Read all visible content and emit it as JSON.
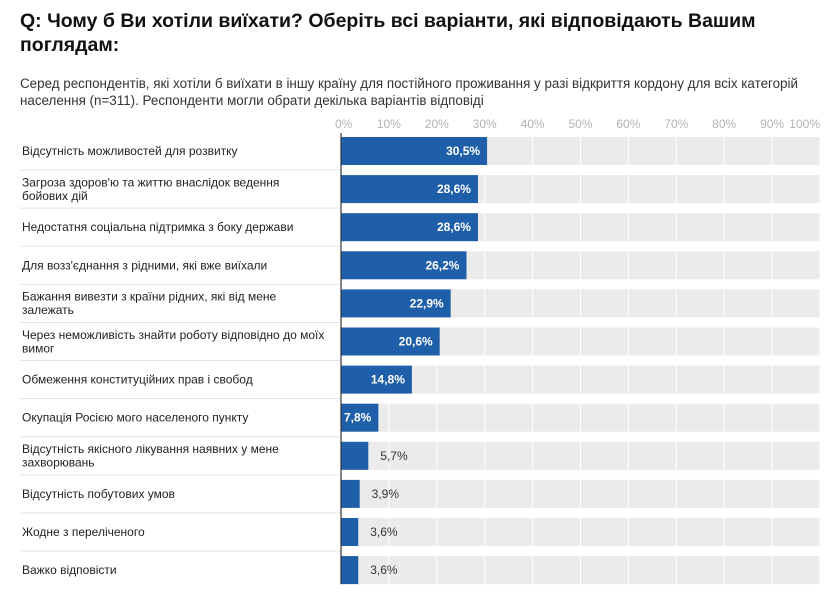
{
  "header": {
    "title": "Q: Чому б Ви хотіли виїхати? Оберіть всі варіанти, які відповідають Вашим поглядам:",
    "subtitle": "Серед респондентів, які хотіли б виїхати в іншу країну для постійного проживання у разі відкриття кордону для всіх категорій населення (n=311). Респонденти могли обрати декілька варіантів відповіді"
  },
  "chart_data": {
    "type": "bar",
    "orientation": "horizontal",
    "title": "Q: Чому б Ви хотіли виїхати? Оберіть всі варіанти, які відповідають Вашим поглядам:",
    "subtitle": "Серед респондентів, які хотіли б виїхати в іншу країну для постійного проживання у разі відкриття кордону для всіх категорій населення (n=311). Респонденти могли обрати декілька варіантів відповіді",
    "categories": [
      [
        "Відсутність можливостей для розвитку"
      ],
      [
        "Загроза здоров'ю та життю внаслідок ведення",
        "бойових дій"
      ],
      [
        "Недостатня соціальна підтримка з боку держави"
      ],
      [
        "Для возз'єднання з рідними, які вже виїхали"
      ],
      [
        "Бажання вивезти з країни рідних, які від мене",
        "залежать"
      ],
      [
        "Через неможливість знайти роботу відповідно до моїх",
        "вимог"
      ],
      [
        "Обмеження конституційних прав і свобод"
      ],
      [
        "Окупація Росією мого населеного пункту"
      ],
      [
        "Відсутність якісного лікування наявних у мене",
        "захворювань"
      ],
      [
        "Відсутність побутових умов"
      ],
      [
        "Жодне з переліченого"
      ],
      [
        "Важко відповісти"
      ]
    ],
    "values": [
      30.5,
      28.6,
      28.6,
      26.2,
      22.9,
      20.6,
      14.8,
      7.8,
      5.7,
      3.9,
      3.6,
      3.6
    ],
    "value_labels": [
      "30,5%",
      "28,6%",
      "28,6%",
      "26,2%",
      "22,9%",
      "20,6%",
      "14,8%",
      "7,8%",
      "5,7%",
      "3,9%",
      "3,6%",
      "3,6%"
    ],
    "xlim": [
      0,
      100
    ],
    "x_ticks": [
      "0%",
      "10%",
      "20%",
      "30%",
      "40%",
      "50%",
      "60%",
      "70%",
      "80%",
      "90%",
      "100%"
    ],
    "bar_color": "#1f5ea8",
    "track_color": "#ebebeb",
    "grid": true,
    "legend": "none"
  }
}
